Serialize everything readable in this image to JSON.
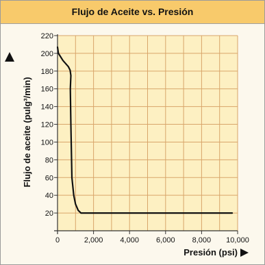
{
  "chart_data": {
    "type": "line",
    "title": "Flujo de Aceite vs. Presión",
    "xlabel": "Presión (psi)",
    "ylabel": "Flujo de aceite  (pulg³/min)",
    "xlim": [
      0,
      10000
    ],
    "ylim": [
      0,
      220
    ],
    "x_ticks": [
      0,
      2000,
      4000,
      6000,
      8000,
      10000
    ],
    "x_tick_labels": [
      "0",
      "2,000",
      "4,000",
      "6,000",
      "8,000",
      "10,000"
    ],
    "y_ticks": [
      20,
      40,
      60,
      80,
      100,
      120,
      140,
      160,
      180,
      200,
      220
    ],
    "y_tick_labels": [
      "20",
      "40",
      "60",
      "80",
      "100",
      "120",
      "140",
      "160",
      "180",
      "200",
      "220"
    ],
    "grid": true,
    "colors": {
      "plot_background": "#fdf0c2",
      "grid": "#d8a56a",
      "title_bar": "#f8ca6b",
      "line": "#111111"
    },
    "series": [
      {
        "x": [
          0,
          50,
          300,
          600,
          700,
          740,
          710,
          740,
          800,
          900,
          1000,
          1150,
          1300,
          2000,
          4000,
          6000,
          8000,
          9700
        ],
        "y": [
          207,
          200,
          192,
          185,
          181,
          175,
          160,
          120,
          60,
          40,
          30,
          23,
          20,
          20,
          20,
          20,
          20,
          20
        ]
      }
    ]
  }
}
